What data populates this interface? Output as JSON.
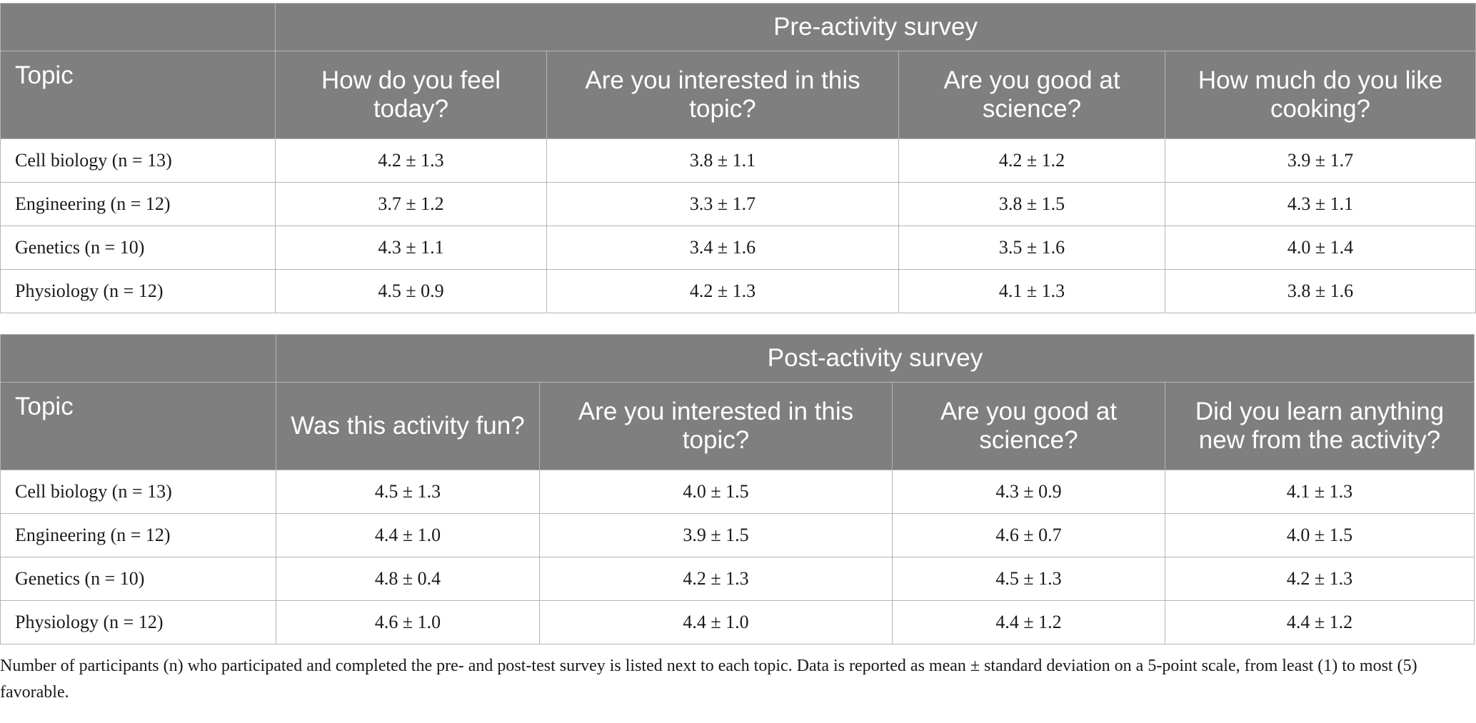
{
  "pre_table": {
    "group_label": "Pre-activity survey",
    "topic_header": "Topic",
    "questions": [
      "How do you feel today?",
      "Are you interested in this topic?",
      "Are you good at science?",
      "How much do you like cooking?"
    ],
    "rows": [
      {
        "topic": "Cell biology (n = 13)",
        "values": [
          "4.2 ± 1.3",
          "3.8 ± 1.1",
          "4.2 ± 1.2",
          "3.9 ± 1.7"
        ]
      },
      {
        "topic": "Engineering (n = 12)",
        "values": [
          "3.7 ± 1.2",
          "3.3 ± 1.7",
          "3.8 ± 1.5",
          "4.3 ± 1.1"
        ]
      },
      {
        "topic": "Genetics (n = 10)",
        "values": [
          "4.3 ± 1.1",
          "3.4 ± 1.6",
          "3.5 ± 1.6",
          "4.0 ± 1.4"
        ]
      },
      {
        "topic": "Physiology (n = 12)",
        "values": [
          "4.5 ± 0.9",
          "4.2 ± 1.3",
          "4.1 ± 1.3",
          "3.8 ± 1.6"
        ]
      }
    ]
  },
  "post_table": {
    "group_label": "Post-activity survey",
    "topic_header": "Topic",
    "questions": [
      "Was this activity fun?",
      "Are you interested in this topic?",
      "Are you good at science?",
      "Did you learn anything new from the activity?"
    ],
    "rows": [
      {
        "topic": "Cell biology (n = 13)",
        "values": [
          "4.5 ± 1.3",
          "4.0 ± 1.5",
          "4.3 ± 0.9",
          "4.1 ± 1.3"
        ]
      },
      {
        "topic": "Engineering (n = 12)",
        "values": [
          "4.4 ± 1.0",
          "3.9 ± 1.5",
          "4.6 ± 0.7",
          "4.0 ± 1.5"
        ]
      },
      {
        "topic": "Genetics (n = 10)",
        "values": [
          "4.8 ± 0.4",
          "4.2 ± 1.3",
          "4.5 ± 1.3",
          "4.2 ± 1.3"
        ]
      },
      {
        "topic": "Physiology (n = 12)",
        "values": [
          "4.6 ± 1.0",
          "4.4 ± 1.0",
          "4.4 ± 1.2",
          "4.4 ± 1.2"
        ]
      }
    ]
  },
  "footnote": "Number of participants (n) who participated and completed the pre- and post-test survey is listed next to each topic. Data is reported as mean ± standard deviation on a 5-point scale, from least (1) to most (5) favorable."
}
